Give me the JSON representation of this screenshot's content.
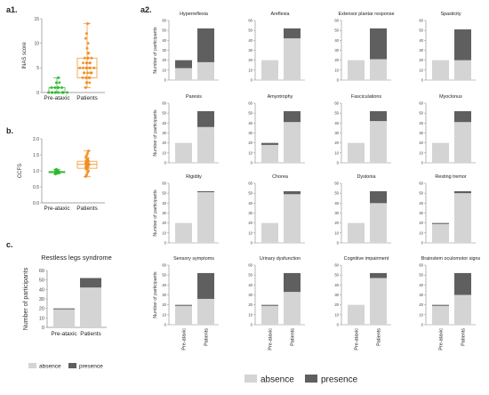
{
  "colors": {
    "absence": "#d4d4d4",
    "presence": "#5f5f5f",
    "pre_ataxic": "#2eb82e",
    "patients": "#f28c1c",
    "axis": "#888888"
  },
  "legend": {
    "absence": "absence",
    "presence": "presence"
  },
  "chart_data": [
    {
      "id": "a1",
      "panel_label": "a1.",
      "type": "scatter",
      "ylabel": "INAS score",
      "ylim": [
        0,
        15
      ],
      "yticks": [
        0,
        5,
        10,
        15
      ],
      "categories": [
        "Pre-ataxic",
        "Patients"
      ],
      "series": [
        {
          "values": [
            0,
            0,
            0,
            0,
            0,
            0,
            0,
            0,
            0,
            0,
            1,
            1,
            1,
            1,
            1,
            2,
            2,
            3
          ]
        },
        {
          "values": [
            1,
            2,
            2,
            2,
            3,
            3,
            3,
            3,
            3,
            4,
            4,
            4,
            4,
            4,
            4,
            5,
            5,
            5,
            5,
            5,
            5,
            5,
            6,
            6,
            6,
            6,
            6,
            7,
            7,
            7,
            7,
            8,
            8,
            9,
            10,
            11,
            12,
            14
          ]
        }
      ],
      "box": [
        {
          "min": 0,
          "q1": 0,
          "median": 0,
          "q3": 1,
          "max": 3
        },
        {
          "min": 1,
          "q1": 3,
          "median": 5,
          "q3": 7,
          "max": 14
        }
      ]
    },
    {
      "id": "b",
      "panel_label": "b.",
      "type": "scatter",
      "ylabel": "CCFS",
      "ylim": [
        0.0,
        2.0
      ],
      "yticks": [
        "0.0",
        "0.5",
        "1.0",
        "1.5",
        "2.0"
      ],
      "categories": [
        "Pre-ataxic",
        "Patients"
      ],
      "series": [
        {
          "values": [
            0.9,
            0.92,
            0.93,
            0.94,
            0.95,
            0.95,
            0.96,
            0.96,
            0.97,
            0.97,
            0.98,
            0.98,
            0.99,
            1.0,
            1.02,
            1.05
          ]
        },
        {
          "values": [
            0.82,
            0.88,
            0.95,
            1.0,
            1.05,
            1.08,
            1.1,
            1.12,
            1.14,
            1.16,
            1.18,
            1.2,
            1.2,
            1.22,
            1.24,
            1.26,
            1.28,
            1.3,
            1.32,
            1.35,
            1.38,
            1.42,
            1.48,
            1.55,
            1.62
          ]
        }
      ],
      "box": [
        {
          "min": 0.9,
          "q1": 0.94,
          "median": 0.96,
          "q3": 0.98,
          "max": 1.05
        },
        {
          "min": 0.82,
          "q1": 1.08,
          "median": 1.2,
          "q3": 1.3,
          "max": 1.62
        }
      ]
    },
    {
      "id": "c",
      "panel_label": "c.",
      "type": "bar",
      "title": "Restless legs syndrome",
      "ylabel": "Number of participants",
      "ylim": [
        0,
        60
      ],
      "yticks": [
        0,
        10,
        20,
        30,
        40,
        50,
        60
      ],
      "categories": [
        "Pre-ataxic",
        "Patients"
      ],
      "series": [
        {
          "name": "absence",
          "values": [
            19,
            42
          ]
        },
        {
          "name": "presence",
          "values": [
            1,
            10
          ]
        }
      ]
    },
    {
      "id": "a2",
      "panel_label": "a2.",
      "type": "bar",
      "ylabel": "Number of participants",
      "ylim": [
        0,
        60
      ],
      "yticks": [
        0,
        10,
        20,
        30,
        40,
        50,
        60
      ],
      "categories": [
        "Pre-ataxic",
        "Patients"
      ],
      "panels": [
        {
          "title": "Hyperreflexia",
          "absence": [
            12,
            18
          ],
          "presence": [
            8,
            34
          ]
        },
        {
          "title": "Areflexia",
          "absence": [
            20,
            42
          ],
          "presence": [
            0,
            10
          ]
        },
        {
          "title": "Extensor plantar response",
          "absence": [
            20,
            21
          ],
          "presence": [
            0,
            31
          ]
        },
        {
          "title": "Spasticity",
          "absence": [
            20,
            20
          ],
          "presence": [
            0,
            31
          ]
        },
        {
          "title": "Paresis",
          "absence": [
            20,
            36
          ],
          "presence": [
            0,
            16
          ]
        },
        {
          "title": "Amyotrophy",
          "absence": [
            18,
            41
          ],
          "presence": [
            2,
            11
          ]
        },
        {
          "title": "Fasciculations",
          "absence": [
            20,
            42
          ],
          "presence": [
            0,
            10
          ]
        },
        {
          "title": "Myoclonus",
          "absence": [
            20,
            41
          ],
          "presence": [
            0,
            11
          ]
        },
        {
          "title": "Rigidity",
          "absence": [
            20,
            51
          ],
          "presence": [
            0,
            1
          ]
        },
        {
          "title": "Chorea",
          "absence": [
            20,
            49
          ],
          "presence": [
            0,
            3
          ]
        },
        {
          "title": "Dystonia",
          "absence": [
            20,
            40
          ],
          "presence": [
            0,
            12
          ]
        },
        {
          "title": "Resting tremor",
          "absence": [
            19,
            50
          ],
          "presence": [
            1,
            2
          ]
        },
        {
          "title": "Sensory symptoms",
          "absence": [
            19,
            26
          ],
          "presence": [
            1,
            26
          ]
        },
        {
          "title": "Urinary dysfunction",
          "absence": [
            19,
            33
          ],
          "presence": [
            1,
            19
          ]
        },
        {
          "title": "Cognitive impairment",
          "absence": [
            20,
            47
          ],
          "presence": [
            0,
            5
          ]
        },
        {
          "title": "Brainstem oculomotor signs",
          "absence": [
            19,
            30
          ],
          "presence": [
            1,
            22
          ]
        }
      ]
    }
  ]
}
